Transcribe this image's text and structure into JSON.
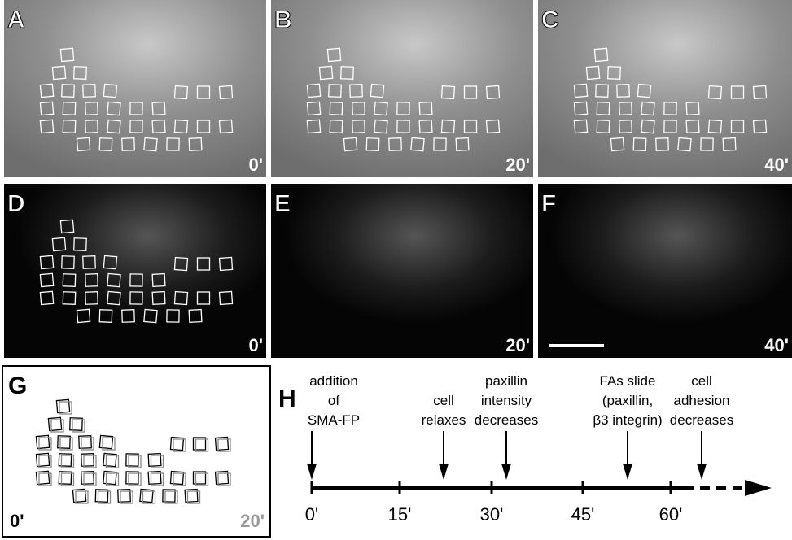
{
  "panels": [
    {
      "letter": "A",
      "time": "0'"
    },
    {
      "letter": "B",
      "time": "20'"
    },
    {
      "letter": "C",
      "time": "40'"
    },
    {
      "letter": "D",
      "time": "0'"
    },
    {
      "letter": "E",
      "time": "20'"
    },
    {
      "letter": "F",
      "time": "40'"
    }
  ],
  "overlay": {
    "letter": "G",
    "start": "0'",
    "end": "20'"
  },
  "timeline": {
    "letter": "H",
    "ticks": [
      "0'",
      "15'",
      "30'",
      "45'",
      "60'"
    ],
    "events": [
      {
        "lines": [
          "addition",
          "of",
          "SMA-FP"
        ]
      },
      {
        "lines": [
          "cell",
          "relaxes"
        ]
      },
      {
        "lines": [
          "paxillin",
          "intensity",
          "decreases"
        ]
      },
      {
        "lines": [
          "FAs slide",
          "(paxillin,",
          "β3 integrin)"
        ]
      },
      {
        "lines": [
          "cell",
          "adhesion",
          "decreases"
        ]
      }
    ]
  }
}
